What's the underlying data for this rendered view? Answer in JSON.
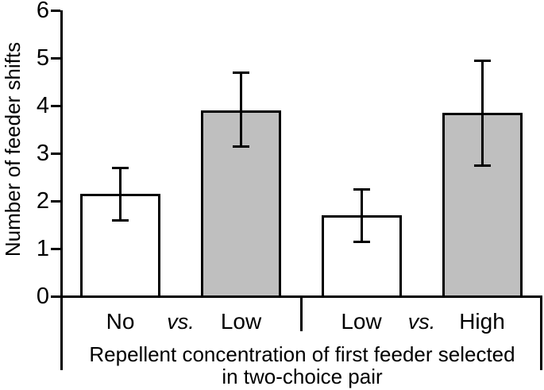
{
  "chart_data": {
    "type": "bar",
    "title": "",
    "ylabel": "Number of feeder shifts",
    "xlabel": "Repellent concentration of first feeder selected in two-choice pair",
    "xlabel_lines": [
      "Repellent concentration of first feeder selected",
      "in two-choice pair"
    ],
    "ylim": [
      0,
      6
    ],
    "yticks": [
      0,
      1,
      2,
      3,
      4,
      5,
      6
    ],
    "grid": false,
    "legend": false,
    "separator_label": "vs.",
    "bars": [
      {
        "category": "No",
        "value": 2.15,
        "err_plus": 0.55,
        "err_minus": 0.55,
        "fill": "#ffffff"
      },
      {
        "category": "Low",
        "value": 3.9,
        "err_plus": 0.8,
        "err_minus": 0.75,
        "fill": "#bfbfbf"
      },
      {
        "category": "Low",
        "value": 1.7,
        "err_plus": 0.55,
        "err_minus": 0.55,
        "fill": "#ffffff"
      },
      {
        "category": "High",
        "value": 3.85,
        "err_plus": 1.1,
        "err_minus": 1.1,
        "fill": "#bfbfbf"
      }
    ],
    "pairs": [
      [
        0,
        1
      ],
      [
        2,
        3
      ]
    ],
    "colors": {
      "axis": "#000000",
      "bar_border": "#000000",
      "gray_fill": "#bfbfbf",
      "white_fill": "#ffffff",
      "background": "#ffffff"
    }
  }
}
